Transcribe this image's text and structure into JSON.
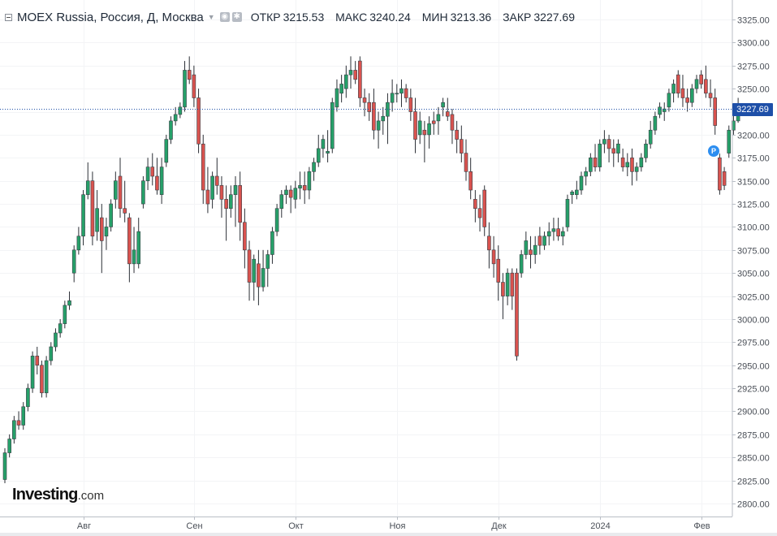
{
  "header": {
    "symbol": "MOEX Russia, Россия, Д, Москва",
    "open_label": "ОТКР",
    "open_value": "3215.53",
    "high_label": "МАКС",
    "high_value": "3240.24",
    "low_label": "МИН",
    "low_value": "3213.36",
    "close_label": "ЗАКР",
    "close_value": "3227.69"
  },
  "logo": {
    "main": "Investing",
    "suffix": ".com"
  },
  "current_price": "3227.69",
  "marker_label": "P",
  "colors": {
    "up": "#26a069",
    "down": "#d9534f",
    "price_line": "#1e4fa8"
  },
  "chart_data": {
    "type": "candlestick",
    "ylim": [
      2790,
      3340
    ],
    "y_ticks": [
      "3325.00",
      "3300.00",
      "3275.00",
      "3250.00",
      "3225.00",
      "3200.00",
      "3175.00",
      "3150.00",
      "3125.00",
      "3100.00",
      "3075.00",
      "3050.00",
      "3025.00",
      "3000.00",
      "2975.00",
      "2950.00",
      "2925.00",
      "2900.00",
      "2875.00",
      "2850.00",
      "2825.00",
      "2800.00"
    ],
    "x_labels": [
      "Авг",
      "Сен",
      "Окт",
      "Ноя",
      "Дек",
      "2024",
      "Фев"
    ],
    "x_label_index": [
      17,
      41,
      63,
      85,
      107,
      129,
      151
    ],
    "last_price": 3227.69,
    "candles": [
      [
        2826,
        2860,
        2822,
        2855
      ],
      [
        2855,
        2875,
        2850,
        2870
      ],
      [
        2870,
        2895,
        2865,
        2890
      ],
      [
        2890,
        2900,
        2880,
        2885
      ],
      [
        2885,
        2910,
        2880,
        2905
      ],
      [
        2905,
        2930,
        2900,
        2925
      ],
      [
        2925,
        2965,
        2920,
        2960
      ],
      [
        2960,
        2970,
        2940,
        2950
      ],
      [
        2950,
        2955,
        2915,
        2920
      ],
      [
        2920,
        2960,
        2915,
        2955
      ],
      [
        2955,
        2975,
        2950,
        2970
      ],
      [
        2970,
        2990,
        2965,
        2985
      ],
      [
        2985,
        3000,
        2980,
        2995
      ],
      [
        2995,
        3020,
        2990,
        3015
      ],
      [
        3015,
        3030,
        3010,
        3020
      ],
      [
        3050,
        3080,
        3040,
        3075
      ],
      [
        3075,
        3100,
        3070,
        3090
      ],
      [
        3090,
        3140,
        3080,
        3135
      ],
      [
        3135,
        3170,
        3130,
        3150
      ],
      [
        3150,
        3160,
        3080,
        3090
      ],
      [
        3095,
        3140,
        3085,
        3120
      ],
      [
        3110,
        3125,
        3050,
        3085
      ],
      [
        3090,
        3110,
        3075,
        3100
      ],
      [
        3100,
        3130,
        3095,
        3125
      ],
      [
        3130,
        3160,
        3120,
        3150
      ],
      [
        3155,
        3175,
        3110,
        3120
      ],
      [
        3120,
        3150,
        3105,
        3115
      ],
      [
        3110,
        3115,
        3040,
        3060
      ],
      [
        3060,
        3100,
        3050,
        3075
      ],
      [
        3060,
        3110,
        3055,
        3095
      ],
      [
        3125,
        3155,
        3120,
        3150
      ],
      [
        3150,
        3175,
        3140,
        3165
      ],
      [
        3165,
        3180,
        3145,
        3155
      ],
      [
        3155,
        3175,
        3135,
        3140
      ],
      [
        3135,
        3175,
        3125,
        3165
      ],
      [
        3170,
        3200,
        3165,
        3195
      ],
      [
        3195,
        3220,
        3190,
        3215
      ],
      [
        3215,
        3230,
        3210,
        3222
      ],
      [
        3222,
        3235,
        3218,
        3230
      ],
      [
        3230,
        3280,
        3225,
        3270
      ],
      [
        3270,
        3285,
        3255,
        3260
      ],
      [
        3265,
        3275,
        3230,
        3240
      ],
      [
        3240,
        3250,
        3180,
        3190
      ],
      [
        3190,
        3200,
        3125,
        3140
      ],
      [
        3140,
        3165,
        3115,
        3125
      ],
      [
        3130,
        3160,
        3120,
        3155
      ],
      [
        3155,
        3175,
        3135,
        3145
      ],
      [
        3145,
        3155,
        3110,
        3130
      ],
      [
        3130,
        3145,
        3085,
        3120
      ],
      [
        3120,
        3145,
        3110,
        3135
      ],
      [
        3135,
        3155,
        3100,
        3145
      ],
      [
        3145,
        3160,
        3085,
        3105
      ],
      [
        3105,
        3120,
        3055,
        3075
      ],
      [
        3075,
        3085,
        3020,
        3040
      ],
      [
        3040,
        3070,
        3020,
        3065
      ],
      [
        3060,
        3075,
        3015,
        3035
      ],
      [
        3035,
        3075,
        3030,
        3055
      ],
      [
        3055,
        3075,
        3035,
        3070
      ],
      [
        3070,
        3100,
        3060,
        3095
      ],
      [
        3095,
        3125,
        3090,
        3120
      ],
      [
        3120,
        3140,
        3110,
        3135
      ],
      [
        3135,
        3145,
        3125,
        3140
      ],
      [
        3140,
        3145,
        3115,
        3132
      ],
      [
        3130,
        3150,
        3120,
        3142
      ],
      [
        3142,
        3160,
        3130,
        3145
      ],
      [
        3145,
        3160,
        3125,
        3140
      ],
      [
        3140,
        3165,
        3130,
        3160
      ],
      [
        3160,
        3175,
        3150,
        3170
      ],
      [
        3170,
        3200,
        3165,
        3185
      ],
      [
        3185,
        3200,
        3175,
        3195
      ],
      [
        3180,
        3205,
        3170,
        3182
      ],
      [
        3185,
        3240,
        3180,
        3235
      ],
      [
        3230,
        3260,
        3225,
        3250
      ],
      [
        3245,
        3265,
        3235,
        3255
      ],
      [
        3250,
        3275,
        3240,
        3265
      ],
      [
        3265,
        3285,
        3250,
        3270
      ],
      [
        3270,
        3280,
        3255,
        3260
      ],
      [
        3280,
        3285,
        3230,
        3240
      ],
      [
        3240,
        3250,
        3220,
        3235
      ],
      [
        3235,
        3245,
        3215,
        3225
      ],
      [
        3235,
        3250,
        3195,
        3205
      ],
      [
        3205,
        3225,
        3185,
        3215
      ],
      [
        3215,
        3230,
        3200,
        3220
      ],
      [
        3220,
        3245,
        3190,
        3235
      ],
      [
        3235,
        3260,
        3225,
        3245
      ],
      [
        3245,
        3255,
        3235,
        3245
      ],
      [
        3245,
        3260,
        3230,
        3250
      ],
      [
        3250,
        3255,
        3235,
        3240
      ],
      [
        3240,
        3250,
        3215,
        3225
      ],
      [
        3225,
        3240,
        3180,
        3195
      ],
      [
        3200,
        3225,
        3190,
        3215
      ],
      [
        3205,
        3215,
        3170,
        3200
      ],
      [
        3200,
        3220,
        3185,
        3212
      ],
      [
        3215,
        3225,
        3200,
        3212
      ],
      [
        3215,
        3230,
        3200,
        3222
      ],
      [
        3230,
        3240,
        3220,
        3235
      ],
      [
        3225,
        3240,
        3215,
        3220
      ],
      [
        3222,
        3228,
        3190,
        3205
      ],
      [
        3205,
        3215,
        3180,
        3195
      ],
      [
        3195,
        3210,
        3170,
        3180
      ],
      [
        3180,
        3195,
        3150,
        3160
      ],
      [
        3160,
        3175,
        3130,
        3140
      ],
      [
        3130,
        3140,
        3105,
        3120
      ],
      [
        3120,
        3135,
        3095,
        3110
      ],
      [
        3140,
        3145,
        3090,
        3100
      ],
      [
        3090,
        3105,
        3055,
        3075
      ],
      [
        3075,
        3090,
        3045,
        3060
      ],
      [
        3065,
        3080,
        3020,
        3040
      ],
      [
        3040,
        3050,
        3000,
        3025
      ],
      [
        3025,
        3055,
        3015,
        3050
      ],
      [
        3050,
        3055,
        3010,
        3025
      ],
      [
        3050,
        3055,
        2955,
        2960
      ],
      [
        3050,
        3075,
        3045,
        3070
      ],
      [
        3070,
        3095,
        3065,
        3085
      ],
      [
        3075,
        3090,
        3055,
        3070
      ],
      [
        3070,
        3090,
        3060,
        3080
      ],
      [
        3090,
        3100,
        3070,
        3080
      ],
      [
        3080,
        3095,
        3075,
        3090
      ],
      [
        3090,
        3105,
        3080,
        3095
      ],
      [
        3095,
        3110,
        3085,
        3098
      ],
      [
        3098,
        3110,
        3085,
        3090
      ],
      [
        3090,
        3100,
        3080,
        3095
      ],
      [
        3100,
        3135,
        3095,
        3130
      ],
      [
        3135,
        3140,
        3125,
        3138
      ],
      [
        3135,
        3150,
        3130,
        3140
      ],
      [
        3140,
        3160,
        3135,
        3155
      ],
      [
        3155,
        3165,
        3145,
        3160
      ],
      [
        3160,
        3180,
        3155,
        3175
      ],
      [
        3175,
        3190,
        3160,
        3165
      ],
      [
        3165,
        3195,
        3160,
        3190
      ],
      [
        3190,
        3205,
        3180,
        3195
      ],
      [
        3195,
        3200,
        3170,
        3185
      ],
      [
        3185,
        3195,
        3165,
        3180
      ],
      [
        3180,
        3195,
        3170,
        3190
      ],
      [
        3175,
        3185,
        3160,
        3165
      ],
      [
        3165,
        3180,
        3155,
        3170
      ],
      [
        3175,
        3185,
        3145,
        3160
      ],
      [
        3160,
        3170,
        3150,
        3165
      ],
      [
        3165,
        3180,
        3160,
        3175
      ],
      [
        3175,
        3195,
        3170,
        3190
      ],
      [
        3190,
        3215,
        3185,
        3205
      ],
      [
        3205,
        3225,
        3200,
        3220
      ],
      [
        3222,
        3235,
        3218,
        3230
      ],
      [
        3225,
        3235,
        3215,
        3228
      ],
      [
        3230,
        3250,
        3225,
        3245
      ],
      [
        3245,
        3260,
        3235,
        3255
      ],
      [
        3265,
        3270,
        3240,
        3245
      ],
      [
        3250,
        3265,
        3230,
        3240
      ],
      [
        3240,
        3250,
        3225,
        3235
      ],
      [
        3235,
        3255,
        3230,
        3250
      ],
      [
        3250,
        3265,
        3245,
        3260
      ],
      [
        3265,
        3270,
        3250,
        3255
      ],
      [
        3260,
        3275,
        3240,
        3245
      ],
      [
        3245,
        3260,
        3230,
        3240
      ],
      [
        3240,
        3250,
        3200,
        3210
      ],
      [
        3175,
        3180,
        3135,
        3140
      ],
      [
        3160,
        3165,
        3140,
        3145
      ],
      [
        3180,
        3210,
        3175,
        3205
      ],
      [
        3205,
        3225,
        3200,
        3215
      ],
      [
        3215,
        3240,
        3213,
        3228
      ]
    ]
  }
}
